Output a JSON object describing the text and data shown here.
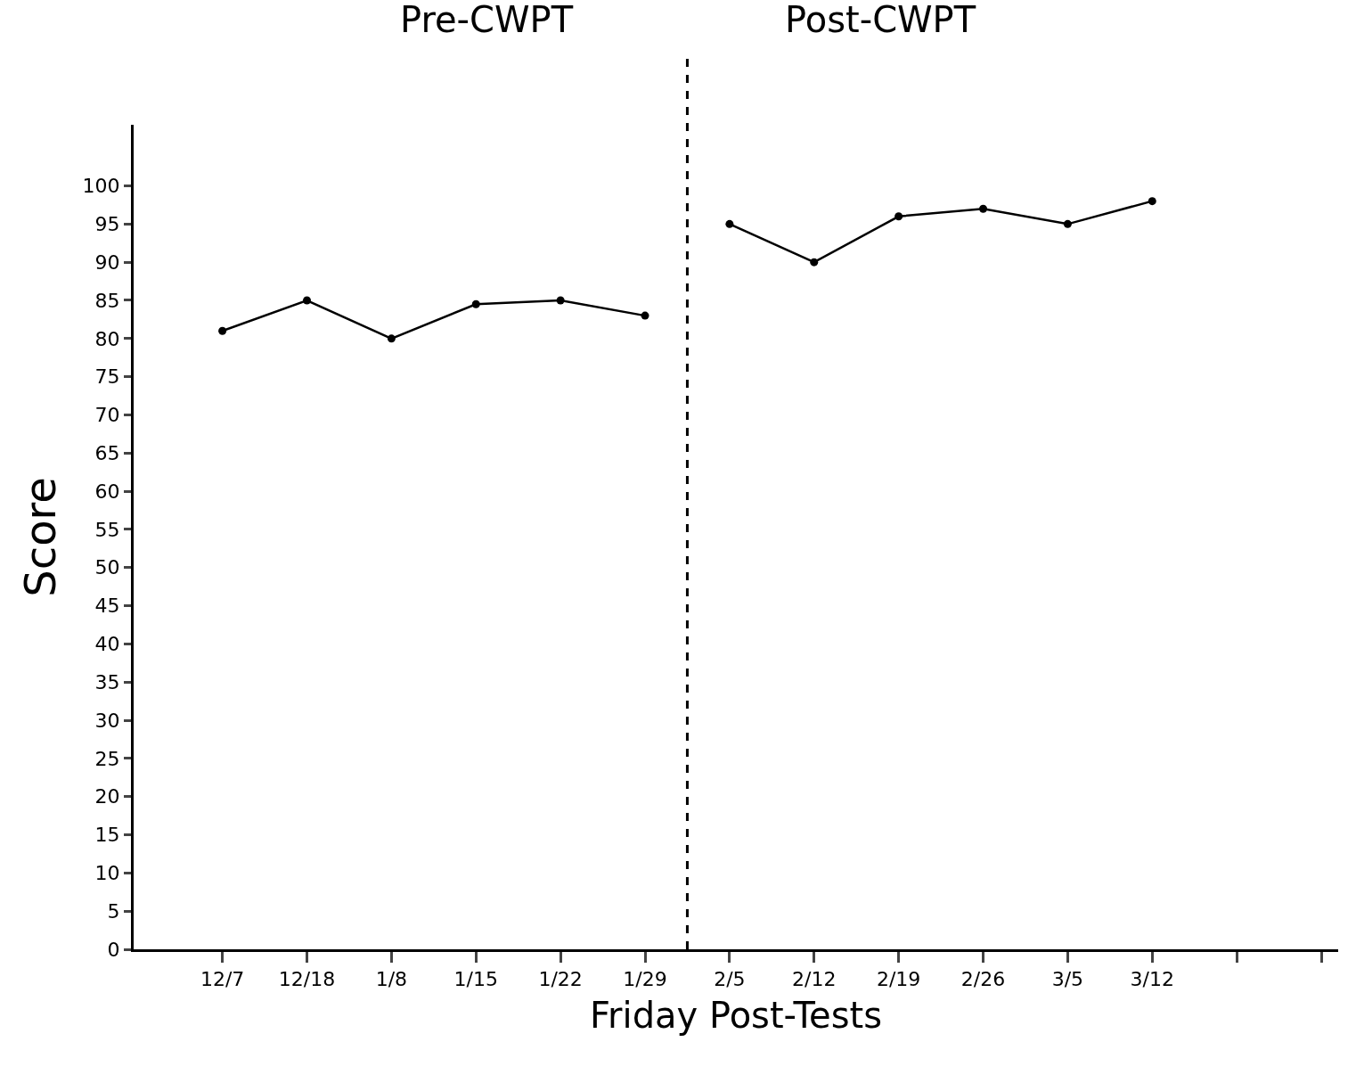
{
  "chart_data": {
    "type": "line",
    "xlabel": "Friday Post-Tests",
    "ylabel": "Score",
    "annotations": [
      "Pre-CWPT",
      "Post-CWPT"
    ],
    "categories": [
      "12/7",
      "12/18",
      "1/8",
      "1/15",
      "1/22",
      "1/29",
      "2/5",
      "2/12",
      "2/19",
      "2/26",
      "3/5",
      "3/12",
      null,
      null
    ],
    "series": [
      {
        "color": "#000000",
        "values": [
          81,
          85,
          80,
          84.5,
          85,
          83,
          null,
          null,
          null,
          null,
          null,
          null,
          null,
          null
        ]
      },
      {
        "color": "#000000",
        "values": [
          null,
          null,
          null,
          null,
          null,
          null,
          95,
          90,
          96,
          97,
          95,
          98,
          null,
          null
        ]
      }
    ],
    "ylim": [
      0,
      108
    ],
    "yticks": [
      0,
      5,
      10,
      15,
      20,
      25,
      30,
      35,
      40,
      45,
      50,
      55,
      60,
      65,
      70,
      75,
      80,
      85,
      90,
      95,
      100
    ],
    "marker": "circle",
    "line_style": "solid"
  }
}
